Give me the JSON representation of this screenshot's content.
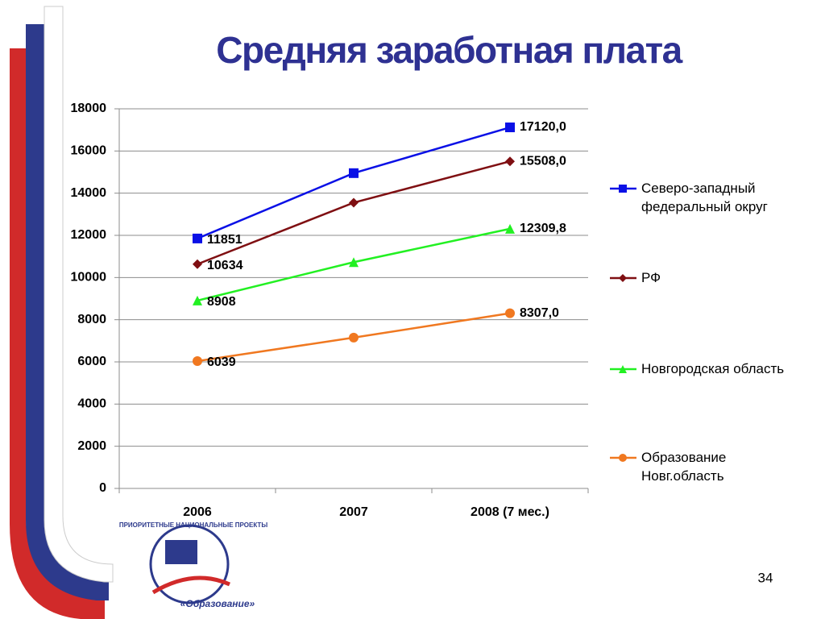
{
  "chart_data": {
    "type": "line",
    "title": "Средняя заработная плата",
    "categories": [
      "2006",
      "2007",
      "2008 (7 мес.)"
    ],
    "series": [
      {
        "name": "Северо-западный федеральный округ",
        "color": "#0a10e6",
        "marker": "square",
        "values": [
          11851,
          14950,
          17120
        ],
        "value_labels": [
          "11851",
          null,
          "17120,0"
        ]
      },
      {
        "name": "РФ",
        "color": "#7f0f12",
        "marker": "diamond",
        "values": [
          10634,
          13550,
          15508
        ],
        "value_labels": [
          "10634",
          null,
          "15508,0"
        ]
      },
      {
        "name": "Новгородская область",
        "color": "#22f022",
        "marker": "triangle",
        "values": [
          8908,
          10730,
          12309.8
        ],
        "value_labels": [
          "8908",
          null,
          "12309,8"
        ]
      },
      {
        "name": "Образование Новг.область",
        "color": "#f07820",
        "marker": "circle",
        "values": [
          6039,
          7150,
          8307
        ],
        "value_labels": [
          "6039",
          null,
          "8307,0"
        ]
      }
    ],
    "ylim": [
      0,
      18000
    ],
    "yticks": [
      0,
      2000,
      4000,
      6000,
      8000,
      10000,
      12000,
      14000,
      16000,
      18000
    ],
    "grid": true,
    "legend": "right"
  },
  "page_number": "34",
  "logo": {
    "arc_text": "ПРИОРИТЕТНЫЕ НАЦИОНАЛЬНЫЕ ПРОЕКТЫ",
    "label": "«Образование»"
  }
}
